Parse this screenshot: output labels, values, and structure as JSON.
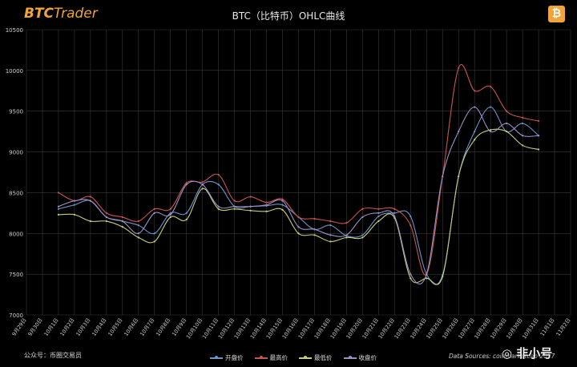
{
  "header": {
    "logo_prefix": "BTC",
    "logo_suffix": "Trader",
    "title": "BTC（比特币）OHLC曲线",
    "coin_symbol": "₿"
  },
  "footer": {
    "left_text": "公众号：币圈交易员",
    "right_text": "Data Sources: coinmarketcap 2017",
    "watermark": "◎ 非小号"
  },
  "colors": {
    "background": "#000000",
    "grid": "#3a3a3a",
    "open": "#6f93c9",
    "high": "#c95454",
    "low": "#c3cf7e",
    "close": "#9f8ec4"
  },
  "chart_data": {
    "type": "line",
    "title": "BTC（比特币）OHLC曲线",
    "xlabel": "",
    "ylabel": "",
    "ylim": [
      7000,
      10500
    ],
    "yticks": [
      7000,
      7500,
      8000,
      8500,
      9000,
      9500,
      10000,
      10500
    ],
    "grid": true,
    "legend_position": "bottom",
    "x": [
      "9月29日",
      "9月30日",
      "10月1日",
      "10月2日",
      "10月3日",
      "10月4日",
      "10月5日",
      "10月6日",
      "10月7日",
      "10月8日",
      "10月9日",
      "10月10日",
      "10月11日",
      "10月12日",
      "10月13日",
      "10月14日",
      "10月15日",
      "10月16日",
      "10月17日",
      "10月18日",
      "10月19日",
      "10月20日",
      "10月21日",
      "10月22日",
      "10月23日",
      "10月24日",
      "10月25日",
      "10月26日",
      "10月27日",
      "10月28日",
      "10月29日",
      "10月30日",
      "10月31日",
      "11月1日",
      "11月2日"
    ],
    "series": [
      {
        "name": "开盘价",
        "values": [
          null,
          null,
          8300,
          8350,
          8400,
          8200,
          8150,
          8100,
          8000,
          8250,
          8250,
          8600,
          8600,
          8330,
          8330,
          8340,
          8350,
          8200,
          8050,
          8100,
          7970,
          7980,
          8210,
          8250,
          8210,
          7500,
          7490,
          8700,
          9250,
          9550,
          9250,
          9350,
          9200,
          null,
          null
        ]
      },
      {
        "name": "最高价",
        "values": [
          null,
          null,
          8500,
          8400,
          8450,
          8250,
          8200,
          8150,
          8300,
          8300,
          8620,
          8630,
          8720,
          8400,
          8450,
          8380,
          8420,
          8200,
          8180,
          8150,
          8130,
          8300,
          8300,
          8300,
          8100,
          7500,
          8700,
          10030,
          9750,
          9800,
          9500,
          9420,
          9380,
          null,
          null
        ]
      },
      {
        "name": "最低价",
        "values": [
          null,
          null,
          8230,
          8230,
          8150,
          8150,
          8080,
          7950,
          7900,
          8200,
          8170,
          8550,
          8300,
          8300,
          8280,
          8270,
          8290,
          8000,
          7980,
          7900,
          7950,
          7950,
          8150,
          8190,
          7450,
          7450,
          7470,
          8700,
          9150,
          9270,
          9250,
          9080,
          9030,
          null,
          null
        ]
      },
      {
        "name": "收盘价",
        "values": [
          null,
          null,
          8330,
          8400,
          8400,
          8200,
          8150,
          8000,
          8250,
          8230,
          8600,
          8600,
          8330,
          8330,
          8330,
          8350,
          8400,
          8080,
          8050,
          7980,
          7980,
          8200,
          8250,
          8210,
          7500,
          7500,
          8700,
          9250,
          9550,
          9250,
          9350,
          9200,
          9200,
          null,
          null
        ]
      }
    ]
  }
}
